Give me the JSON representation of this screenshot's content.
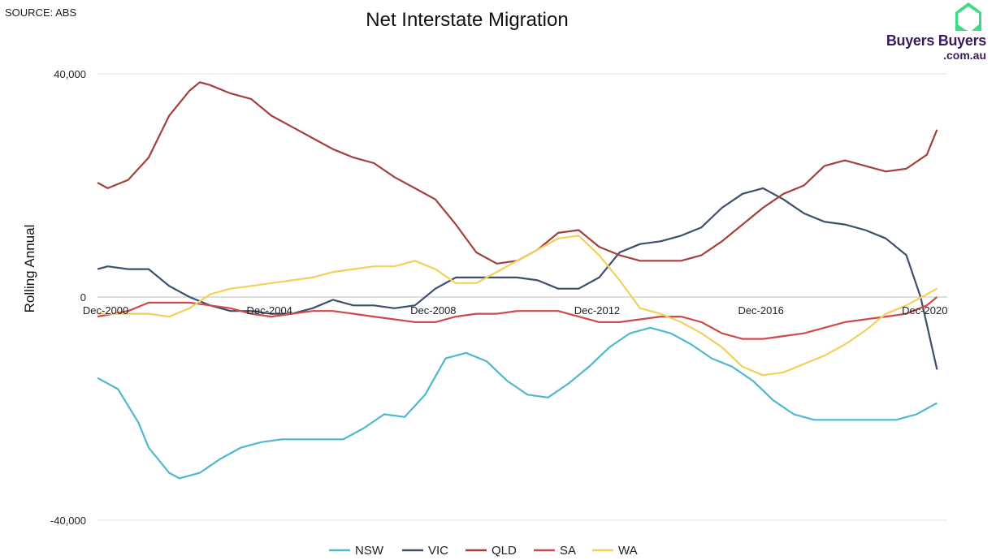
{
  "source_label": "SOURCE: ABS",
  "logo": {
    "name_text": "Buyers Buyers",
    "domain_text": ".com.au",
    "accent_color": "#3ddc84",
    "text_color": "#3a1a5c"
  },
  "chart_data": {
    "type": "line",
    "title": "Net Interstate Migration",
    "ylabel": "Rolling Annual",
    "xlabel": "",
    "ylim": [
      -40000,
      40000
    ],
    "xlim": [
      2000.75,
      2021.5
    ],
    "y_ticks": [
      {
        "value": 40000,
        "label": "40,000"
      },
      {
        "value": 0,
        "label": "0"
      },
      {
        "value": -40000,
        "label": "-40,000"
      }
    ],
    "x_ticks": [
      {
        "value": 2000.95,
        "label": "Dec-2000"
      },
      {
        "value": 2004.95,
        "label": "Dec-2004"
      },
      {
        "value": 2008.95,
        "label": "Dec-2008"
      },
      {
        "value": 2012.95,
        "label": "Dec-2012"
      },
      {
        "value": 2016.95,
        "label": "Dec-2016"
      },
      {
        "value": 2020.95,
        "label": "Dec-2020"
      }
    ],
    "grid": "horizontal",
    "legend_position": "bottom",
    "series": [
      {
        "name": "NSW",
        "color": "#4fb8d0",
        "x": [
          2000.75,
          2001.25,
          2001.75,
          2002.0,
          2002.5,
          2002.75,
          2003.25,
          2003.75,
          2004.25,
          2004.75,
          2005.25,
          2005.75,
          2006.25,
          2006.75,
          2007.25,
          2007.75,
          2008.25,
          2008.75,
          2009.25,
          2009.75,
          2010.25,
          2010.75,
          2011.25,
          2011.75,
          2012.25,
          2012.75,
          2013.25,
          2013.75,
          2014.25,
          2014.75,
          2015.25,
          2015.75,
          2016.25,
          2016.75,
          2017.25,
          2017.75,
          2018.25,
          2018.75,
          2019.25,
          2019.75,
          2020.25,
          2020.75,
          2021.25
        ],
        "y": [
          -14500,
          -16500,
          -22500,
          -27000,
          -31500,
          -32500,
          -31500,
          -29000,
          -27000,
          -26000,
          -25500,
          -25500,
          -25500,
          -25500,
          -23500,
          -21000,
          -21500,
          -17500,
          -11000,
          -10000,
          -11500,
          -15000,
          -17500,
          -18000,
          -15500,
          -12500,
          -9000,
          -6500,
          -5500,
          -6500,
          -8500,
          -11000,
          -12500,
          -15000,
          -18500,
          -21000,
          -22000,
          -22000,
          -22000,
          -22000,
          -22000,
          -21000,
          -19000
        ]
      },
      {
        "name": "VIC",
        "color": "#3e4f6e",
        "x": [
          2000.75,
          2001.0,
          2001.5,
          2002.0,
          2002.5,
          2003.0,
          2003.5,
          2004.0,
          2004.5,
          2005.0,
          2005.5,
          2006.0,
          2006.5,
          2007.0,
          2007.5,
          2008.0,
          2008.5,
          2009.0,
          2009.5,
          2010.0,
          2010.5,
          2011.0,
          2011.5,
          2012.0,
          2012.5,
          2013.0,
          2013.5,
          2014.0,
          2014.5,
          2015.0,
          2015.5,
          2016.0,
          2016.5,
          2017.0,
          2017.5,
          2018.0,
          2018.5,
          2019.0,
          2019.5,
          2020.0,
          2020.5,
          2020.85,
          2021.25
        ],
        "y": [
          5000,
          5500,
          5000,
          5000,
          2000,
          0,
          -1500,
          -2500,
          -2500,
          -3000,
          -3000,
          -2000,
          -500,
          -1500,
          -1500,
          -2000,
          -1500,
          1500,
          3500,
          3500,
          3500,
          3500,
          3000,
          1500,
          1500,
          3500,
          8000,
          9500,
          10000,
          11000,
          12500,
          16000,
          18500,
          19500,
          17500,
          15000,
          13500,
          13000,
          12000,
          10500,
          7500,
          0,
          -13000
        ]
      },
      {
        "name": "QLD",
        "color": "#a3403a",
        "x": [
          2000.75,
          2001.0,
          2001.5,
          2002.0,
          2002.5,
          2003.0,
          2003.25,
          2003.5,
          2004.0,
          2004.5,
          2005.0,
          2005.5,
          2006.0,
          2006.5,
          2007.0,
          2007.5,
          2008.0,
          2008.5,
          2009.0,
          2009.5,
          2010.0,
          2010.5,
          2011.0,
          2011.5,
          2012.0,
          2012.5,
          2013.0,
          2013.5,
          2014.0,
          2014.5,
          2015.0,
          2015.5,
          2016.0,
          2016.5,
          2017.0,
          2017.5,
          2018.0,
          2018.5,
          2019.0,
          2019.5,
          2020.0,
          2020.5,
          2021.0,
          2021.25
        ],
        "y": [
          20500,
          19500,
          21000,
          25000,
          32500,
          37000,
          38500,
          38000,
          36500,
          35500,
          32500,
          30500,
          28500,
          26500,
          25000,
          24000,
          21500,
          19500,
          17500,
          13000,
          8000,
          6000,
          6500,
          8500,
          11500,
          12000,
          9000,
          7500,
          6500,
          6500,
          6500,
          7500,
          10000,
          13000,
          16000,
          18500,
          20000,
          23500,
          24500,
          23500,
          22500,
          23000,
          25500,
          30000
        ]
      },
      {
        "name": "SA",
        "color": "#cf4a4a",
        "x": [
          2000.75,
          2001.5,
          2002.0,
          2002.5,
          2003.0,
          2003.5,
          2004.0,
          2004.5,
          2005.0,
          2005.5,
          2006.0,
          2006.5,
          2007.0,
          2007.5,
          2008.0,
          2008.5,
          2009.0,
          2009.5,
          2010.0,
          2010.5,
          2011.0,
          2011.5,
          2012.0,
          2012.5,
          2013.0,
          2013.5,
          2014.0,
          2014.5,
          2015.0,
          2015.5,
          2016.0,
          2016.5,
          2017.0,
          2017.5,
          2018.0,
          2018.5,
          2019.0,
          2019.5,
          2020.0,
          2020.5,
          2021.0,
          2021.25
        ],
        "y": [
          -3500,
          -2500,
          -1000,
          -1000,
          -1000,
          -1500,
          -2000,
          -3000,
          -3500,
          -3000,
          -2500,
          -2500,
          -3000,
          -3500,
          -4000,
          -4500,
          -4500,
          -3500,
          -3000,
          -3000,
          -2500,
          -2500,
          -2500,
          -3500,
          -4500,
          -4500,
          -4000,
          -3500,
          -3500,
          -4500,
          -6500,
          -7500,
          -7500,
          -7000,
          -6500,
          -5500,
          -4500,
          -4000,
          -3500,
          -3000,
          -1500,
          0
        ]
      },
      {
        "name": "WA",
        "color": "#f2d05a",
        "x": [
          2000.75,
          2001.5,
          2002.0,
          2002.5,
          2003.0,
          2003.5,
          2004.0,
          2004.5,
          2005.0,
          2005.5,
          2006.0,
          2006.5,
          2007.0,
          2007.5,
          2008.0,
          2008.5,
          2009.0,
          2009.5,
          2010.0,
          2010.5,
          2011.0,
          2011.5,
          2012.0,
          2012.5,
          2013.0,
          2013.5,
          2014.0,
          2014.5,
          2015.0,
          2015.5,
          2016.0,
          2016.5,
          2017.0,
          2017.5,
          2018.0,
          2018.5,
          2019.0,
          2019.5,
          2020.0,
          2020.5,
          2021.0,
          2021.25
        ],
        "y": [
          -3000,
          -3000,
          -3000,
          -3500,
          -2000,
          500,
          1500,
          2000,
          2500,
          3000,
          3500,
          4500,
          5000,
          5500,
          5500,
          6500,
          5000,
          2500,
          2500,
          4500,
          6500,
          8500,
          10500,
          11000,
          7500,
          3000,
          -2000,
          -3000,
          -4500,
          -6500,
          -9000,
          -12500,
          -14000,
          -13500,
          -12000,
          -10500,
          -8500,
          -6000,
          -3000,
          -1500,
          500,
          1500
        ]
      }
    ]
  }
}
